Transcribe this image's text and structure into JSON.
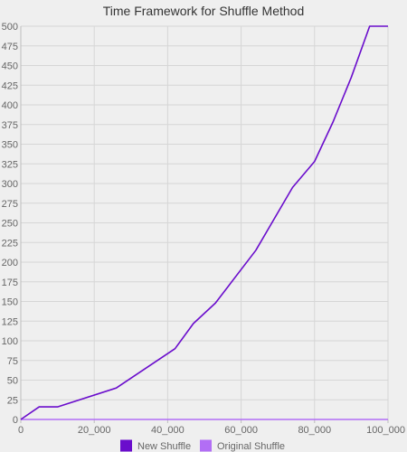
{
  "chart_data": {
    "type": "line",
    "title": "Time Framework for Shuffle Method",
    "xlabel": "",
    "ylabel": "",
    "xlim": [
      0,
      100000
    ],
    "ylim": [
      0,
      500
    ],
    "x_ticks": [
      0,
      20000,
      40000,
      60000,
      80000,
      100000
    ],
    "x_tick_labels": [
      "0",
      "20_000",
      "40_000",
      "60_000",
      "80_000",
      "100_000"
    ],
    "y_ticks": [
      0,
      25,
      50,
      75,
      100,
      125,
      150,
      175,
      200,
      225,
      250,
      275,
      300,
      325,
      350,
      375,
      400,
      425,
      450,
      475,
      500
    ],
    "y_tick_labels": [
      "0",
      "25",
      "50",
      "75",
      "100",
      "125",
      "150",
      "175",
      "200",
      "225",
      "250",
      "275",
      "300",
      "325",
      "350",
      "375",
      "400",
      "425",
      "450",
      "475",
      "500"
    ],
    "grid": true,
    "legend_position": "bottom",
    "series": [
      {
        "name": "New Shuffle",
        "color": "#6a0dcc",
        "points": [
          [
            0,
            0
          ],
          [
            5000,
            16
          ],
          [
            10000,
            16
          ],
          [
            26000,
            40
          ],
          [
            42000,
            90
          ],
          [
            47000,
            122
          ],
          [
            53000,
            148
          ],
          [
            64000,
            215
          ],
          [
            74000,
            295
          ],
          [
            80000,
            328
          ],
          [
            85000,
            378
          ],
          [
            90000,
            435
          ],
          [
            95000,
            500
          ],
          [
            100000,
            500
          ]
        ]
      },
      {
        "name": "Original Shuffle",
        "color": "#b26ef5",
        "points": [
          [
            0,
            0
          ],
          [
            100000,
            0
          ]
        ]
      }
    ]
  }
}
